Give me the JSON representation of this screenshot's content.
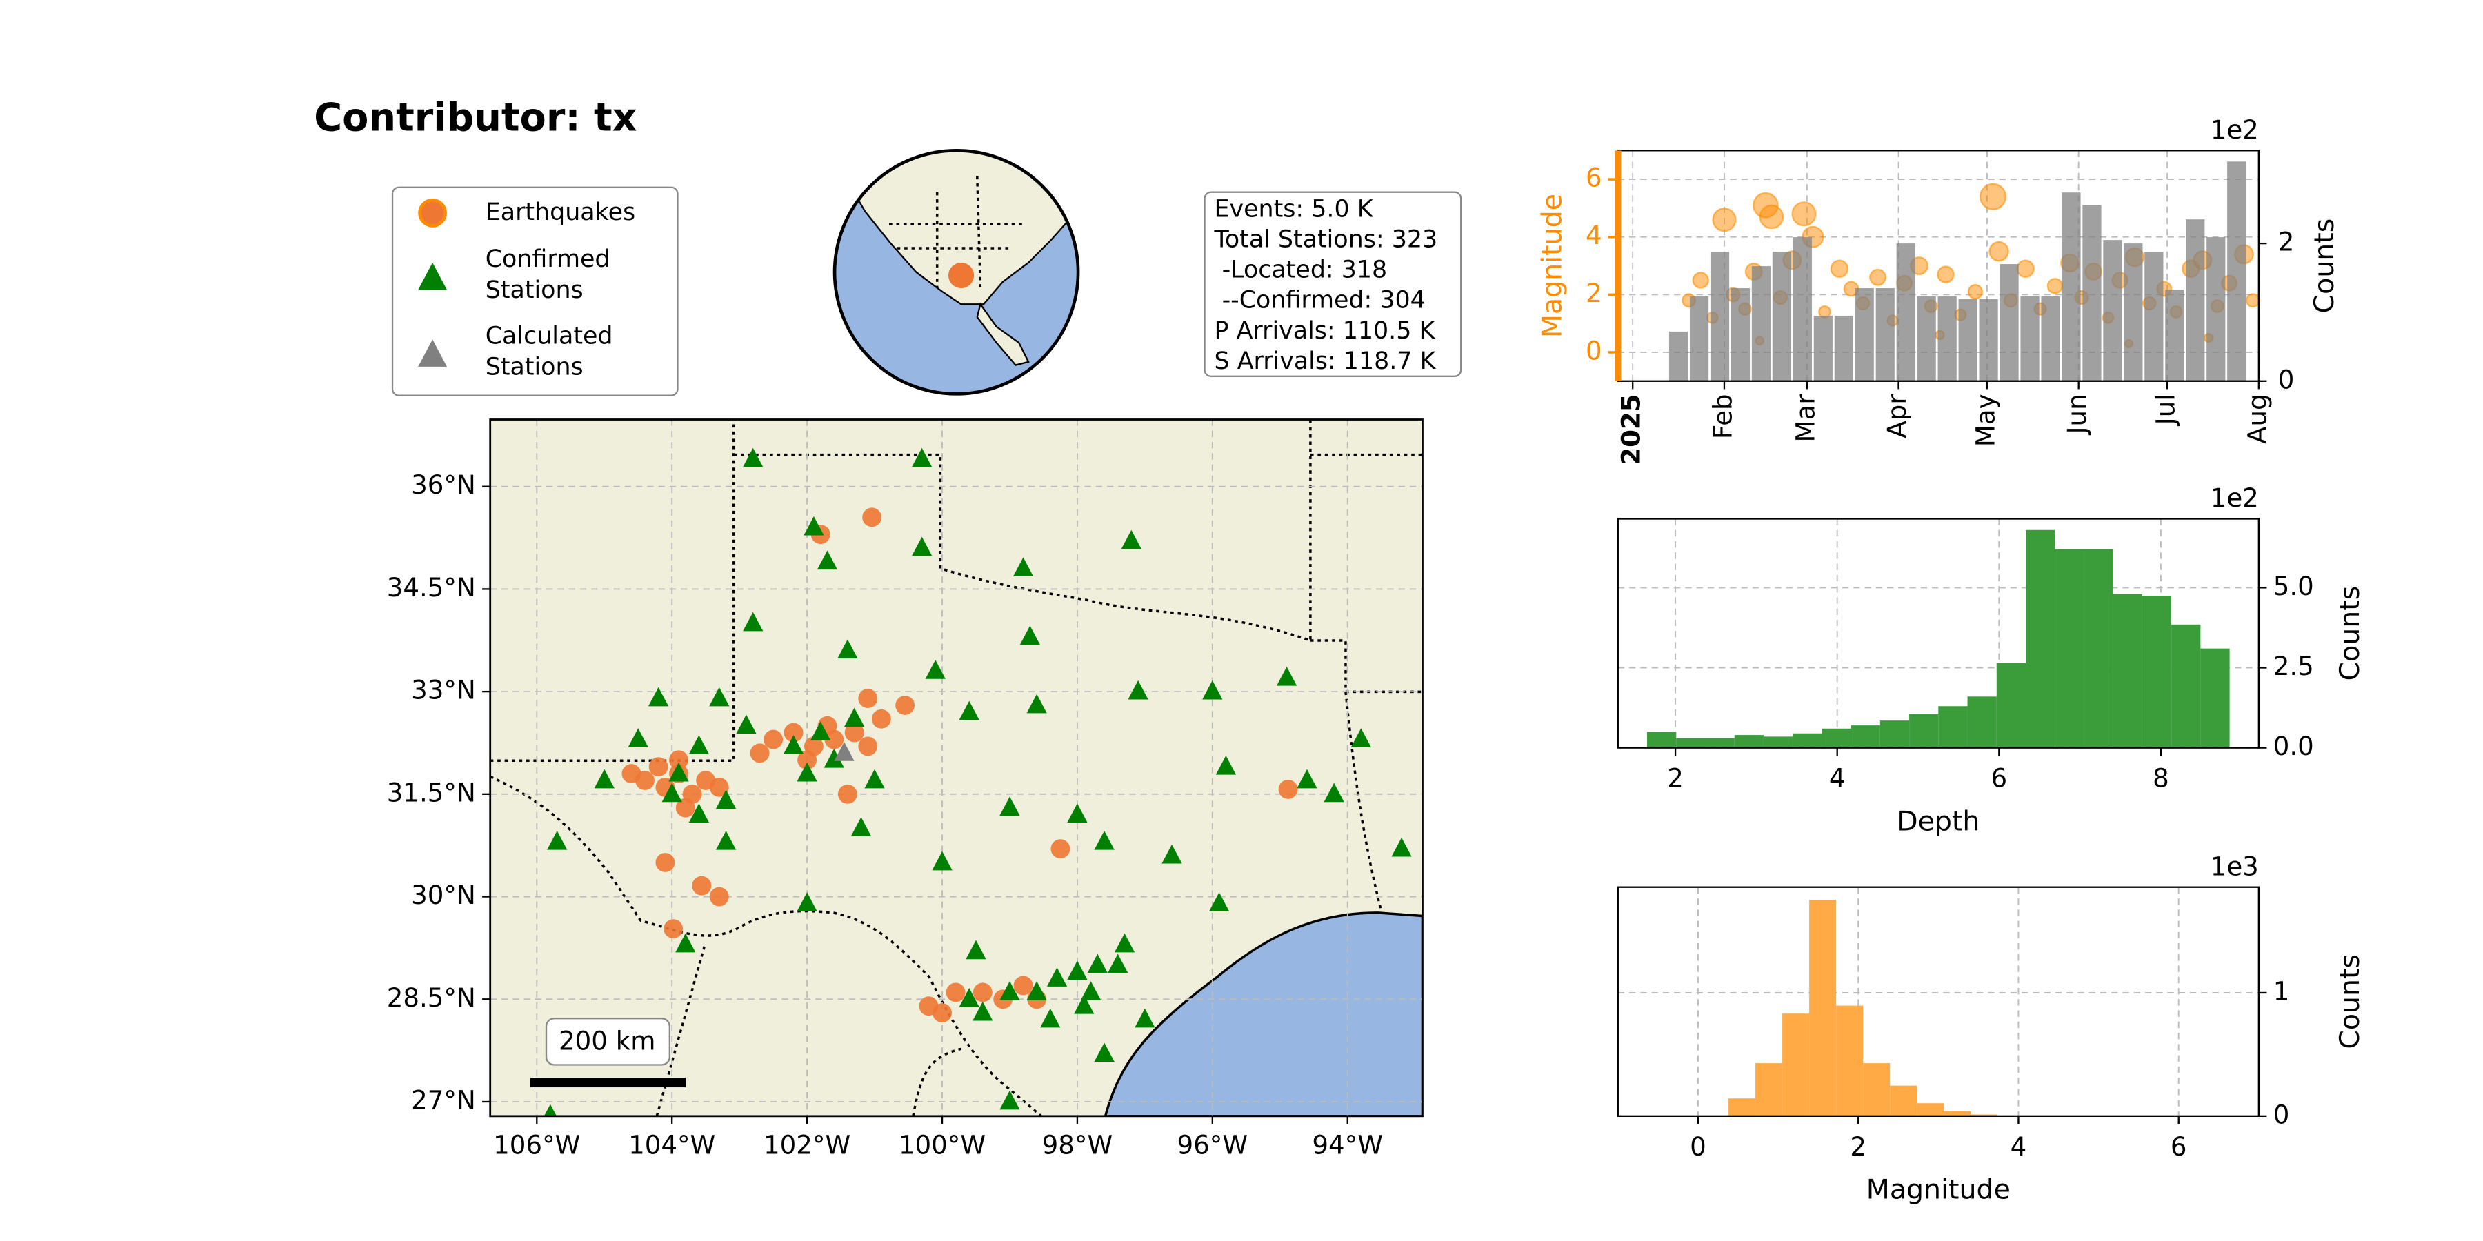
{
  "title": "Contributor: tx",
  "stats": {
    "lines": [
      "Events: 5.0 K",
      "Total Stations: 323",
      " -Located: 318",
      " --Confirmed: 304",
      "P Arrivals: 110.5 K",
      "S Arrivals: 118.7 K"
    ]
  },
  "chart_data": [
    {
      "type": "map",
      "xlim": [
        -106.69,
        -92.89
      ],
      "ylim": [
        26.79,
        36.98
      ],
      "xticks": [
        {
          "value": -106,
          "label": "106°W"
        },
        {
          "value": -104,
          "label": "104°W"
        },
        {
          "value": -102,
          "label": "102°W"
        },
        {
          "value": -100,
          "label": "100°W"
        },
        {
          "value": -98,
          "label": "98°W"
        },
        {
          "value": -96,
          "label": "96°W"
        },
        {
          "value": -94,
          "label": "94°W"
        }
      ],
      "yticks": [
        {
          "value": 36,
          "label": "36°N"
        },
        {
          "value": 34.5,
          "label": "34.5°N"
        },
        {
          "value": 33,
          "label": "33°N"
        },
        {
          "value": 31.5,
          "label": "31.5°N"
        },
        {
          "value": 30,
          "label": "30°N"
        },
        {
          "value": 28.5,
          "label": "28.5°N"
        },
        {
          "value": 27,
          "label": "27°N"
        }
      ],
      "grid": true,
      "scale_bar_label": "200 km",
      "series": [
        {
          "name": "Earthquakes",
          "marker": "circle",
          "color": "#ee7733",
          "x": [
            -104.4,
            -104.1,
            -103.9,
            -103.7,
            -103.5,
            -104.2,
            -103.8,
            -104.6,
            -103.3,
            -103.9,
            -102.5,
            -102.2,
            -101.9,
            -101.6,
            -101.3,
            -101.1,
            -102.0,
            -101.7,
            -102.7,
            -100.9,
            -101.1,
            -101.4,
            -100.2,
            -100.0,
            -99.4,
            -99.1,
            -98.8,
            -98.6,
            -99.8,
            -101.04,
            -101.8,
            -98.25,
            -94.88,
            -104.1,
            -103.98,
            -103.56,
            -103.3,
            -100.55
          ],
          "y": [
            31.7,
            31.6,
            31.8,
            31.5,
            31.7,
            31.9,
            31.3,
            31.8,
            31.6,
            32.0,
            32.3,
            32.4,
            32.2,
            32.3,
            32.4,
            32.2,
            32.0,
            32.5,
            32.1,
            32.6,
            32.9,
            31.5,
            28.4,
            28.3,
            28.6,
            28.5,
            28.7,
            28.5,
            28.6,
            35.55,
            35.3,
            30.7,
            31.57,
            30.5,
            29.53,
            30.16,
            30.0,
            32.8
          ]
        },
        {
          "name": "Confirmed\nStations",
          "marker": "triangle",
          "color": "#008000",
          "x": [
            -102.8,
            -100.3,
            -101.9,
            -101.7,
            -100.3,
            -98.8,
            -97.2,
            -102.8,
            -101.4,
            -100.1,
            -98.7,
            -97.1,
            -96.0,
            -94.9,
            -98.6,
            -99.6,
            -93.8,
            -95.8,
            -94.6,
            -94.2,
            -98.0,
            -99.0,
            -101.2,
            -97.6,
            -100.0,
            -96.6,
            -93.2,
            -95.9,
            -102.0,
            -103.8,
            -103.2,
            -105.0,
            -105.7,
            -102.9,
            -103.3,
            -104.2,
            -103.6,
            -104.0,
            -103.9,
            -103.6,
            -103.2,
            -102.2,
            -101.8,
            -101.6,
            -101.3,
            -101.0,
            -102.0,
            -104.5,
            -99.4,
            -99.0,
            -98.6,
            -98.3,
            -98.0,
            -97.7,
            -97.3,
            -97.8,
            -98.4,
            -97.9,
            -97.6,
            -97.0,
            -99.0,
            -99.5,
            -105.8,
            -99.6,
            -97.4
          ],
          "y": [
            36.4,
            36.4,
            35.4,
            34.9,
            35.1,
            34.8,
            35.2,
            34.0,
            33.6,
            33.3,
            33.8,
            33.0,
            33.0,
            33.2,
            32.8,
            32.7,
            32.3,
            31.9,
            31.7,
            31.5,
            31.2,
            31.3,
            31.0,
            30.8,
            30.5,
            30.6,
            30.7,
            29.9,
            29.9,
            29.3,
            30.8,
            31.7,
            30.8,
            32.5,
            32.9,
            32.9,
            32.2,
            31.5,
            31.8,
            31.2,
            31.4,
            32.2,
            32.4,
            32.0,
            32.6,
            31.7,
            31.8,
            32.3,
            28.3,
            28.6,
            28.6,
            28.8,
            28.9,
            29.0,
            29.3,
            28.6,
            28.2,
            28.4,
            27.7,
            28.2,
            27.0,
            29.2,
            26.8,
            28.5,
            29.0
          ]
        },
        {
          "name": "Calculated\nStations",
          "marker": "triangle",
          "color": "#808080",
          "x": [
            -101.45
          ],
          "y": [
            32.1
          ]
        }
      ]
    },
    {
      "type": "timeseries",
      "xlim": [
        "2024-12-27",
        "2025-08-01"
      ],
      "xticks": [
        {
          "value": "2025-01-01",
          "label": "2025"
        },
        {
          "value": "2025-02-01",
          "label": "Feb"
        },
        {
          "value": "2025-03-01",
          "label": "Mar"
        },
        {
          "value": "2025-04-01",
          "label": "Apr"
        },
        {
          "value": "2025-05-01",
          "label": "May"
        },
        {
          "value": "2025-06-01",
          "label": "Jun"
        },
        {
          "value": "2025-07-01",
          "label": "Jul"
        },
        {
          "value": "2025-08-01",
          "label": "Aug"
        }
      ],
      "ylim": [
        -1,
        7
      ],
      "yticks": [
        0,
        2,
        4,
        6
      ],
      "ylabel": "Magnitude",
      "y2lim": [
        0,
        335
      ],
      "y2ticks": [
        0,
        {
          "value": 200,
          "label": "2"
        }
      ],
      "y2label": "Counts",
      "y2_offset": "1e2",
      "grid": true,
      "series": [
        {
          "kind": "scatter",
          "color": "#ff8c00",
          "x": [
            "2025-01-20",
            "2025-01-24",
            "2025-01-28",
            "2025-02-01",
            "2025-02-04",
            "2025-02-08",
            "2025-02-11",
            "2025-02-15",
            "2025-02-17",
            "2025-02-20",
            "2025-02-24",
            "2025-02-28",
            "2025-03-03",
            "2025-03-07",
            "2025-03-12",
            "2025-03-16",
            "2025-03-20",
            "2025-03-25",
            "2025-03-30",
            "2025-04-03",
            "2025-04-08",
            "2025-04-12",
            "2025-04-17",
            "2025-04-22",
            "2025-04-27",
            "2025-05-03",
            "2025-05-05",
            "2025-05-09",
            "2025-05-14",
            "2025-05-19",
            "2025-05-24",
            "2025-05-29",
            "2025-06-02",
            "2025-06-06",
            "2025-06-11",
            "2025-06-15",
            "2025-06-20",
            "2025-06-25",
            "2025-06-30",
            "2025-07-04",
            "2025-07-09",
            "2025-07-13",
            "2025-07-18",
            "2025-07-22",
            "2025-07-27",
            "2025-07-30",
            "2025-02-13",
            "2025-04-15",
            "2025-06-18",
            "2025-07-15"
          ],
          "values": [
            1.8,
            2.5,
            1.2,
            4.6,
            2.0,
            1.5,
            2.8,
            5.1,
            4.7,
            1.9,
            3.2,
            4.8,
            4.0,
            1.4,
            2.9,
            2.2,
            1.7,
            2.6,
            1.1,
            2.4,
            3.0,
            1.6,
            2.7,
            1.3,
            2.1,
            5.4,
            3.5,
            1.8,
            2.9,
            1.5,
            2.3,
            3.1,
            1.9,
            2.8,
            1.2,
            2.5,
            3.3,
            1.7,
            2.2,
            1.4,
            2.9,
            3.2,
            1.6,
            2.4,
            3.4,
            1.8,
            0.4,
            0.6,
            0.3,
            0.5
          ]
        },
        {
          "kind": "bar",
          "axis": "y2",
          "color": "#808080",
          "bins": [
            "2025-01-13",
            "2025-01-20",
            "2025-01-27",
            "2025-02-03",
            "2025-02-10",
            "2025-02-17",
            "2025-02-24",
            "2025-03-03",
            "2025-03-10",
            "2025-03-17",
            "2025-03-24",
            "2025-03-31",
            "2025-04-07",
            "2025-04-14",
            "2025-04-21",
            "2025-04-28",
            "2025-05-05",
            "2025-05-12",
            "2025-05-19",
            "2025-05-26",
            "2025-06-02",
            "2025-06-09",
            "2025-06-16",
            "2025-06-23",
            "2025-06-30",
            "2025-07-07",
            "2025-07-14",
            "2025-07-21",
            "2025-07-28"
          ],
          "values": [
            72,
            123,
            188,
            135,
            167,
            188,
            209,
            95,
            95,
            135,
            135,
            200,
            123,
            123,
            119,
            119,
            170,
            123,
            123,
            274,
            256,
            205,
            200,
            188,
            133,
            235,
            209,
            319
          ]
        }
      ]
    },
    {
      "type": "histogram",
      "color": "#3a9d3a",
      "bins": [
        1.65,
        2.01,
        2.37,
        2.73,
        3.09,
        3.45,
        3.81,
        4.17,
        4.53,
        4.89,
        5.25,
        5.61,
        5.97,
        6.33,
        6.69,
        7.05,
        7.41,
        7.77,
        8.13,
        8.49,
        8.85
      ],
      "values": [
        50,
        30,
        30,
        40,
        35,
        45,
        60,
        70,
        85,
        105,
        130,
        160,
        265,
        680,
        620,
        620,
        480,
        475,
        385,
        310
      ],
      "xlim": [
        1.29,
        9.21
      ],
      "xticks": [
        2,
        4,
        6,
        8
      ],
      "xlabel": "Depth",
      "ylim": [
        0,
        715
      ],
      "yticks": [
        {
          "value": 0,
          "label": "0.0"
        },
        {
          "value": 250,
          "label": "2.5"
        },
        {
          "value": 500,
          "label": "5.0"
        }
      ],
      "ylabel": "Counts",
      "y_offset": "1e2",
      "grid": true
    },
    {
      "type": "histogram",
      "color": "#ffaa44",
      "bins": [
        0.38,
        0.716,
        1.052,
        1.388,
        1.724,
        2.06,
        2.396,
        2.732,
        3.068,
        3.404,
        3.74
      ],
      "values": [
        143,
        429,
        831,
        1753,
        896,
        429,
        247,
        104,
        39,
        13
      ],
      "xlim": [
        -1,
        7
      ],
      "xticks": [
        0,
        2,
        4,
        6
      ],
      "xlabel": "Magnitude",
      "ylim": [
        0,
        1857
      ],
      "yticks": [
        0,
        {
          "value": 1000,
          "label": "1"
        }
      ],
      "ylabel": "Counts",
      "y_offset": "1e3",
      "grid": true
    }
  ]
}
